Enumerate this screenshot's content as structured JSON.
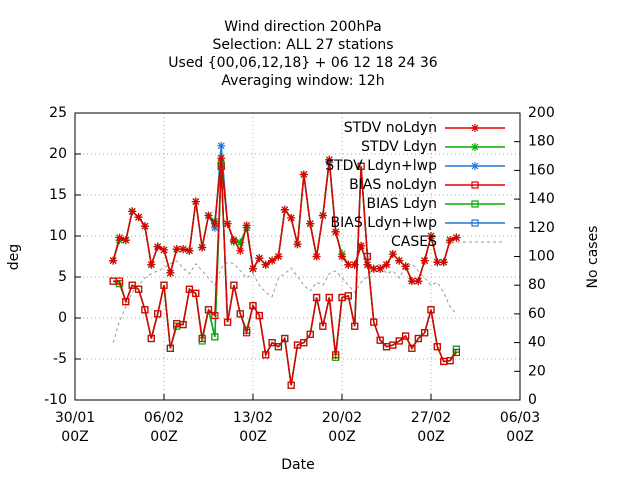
{
  "chart_data": {
    "type": "line",
    "title": [
      "Wind direction 200hPa",
      "Selection: ALL      27 stations",
      "Used {00,06,12,18} + 06 12 18 24 36",
      "Averaging window: 12h"
    ],
    "xlabel": "Date",
    "ylabel": "deg",
    "y2label": "No cases",
    "xlim": [
      0,
      35
    ],
    "xticks": [
      {
        "value": 0,
        "label": "30/01 00Z"
      },
      {
        "value": 7,
        "label": "06/02 00Z"
      },
      {
        "value": 14,
        "label": "13/02 00Z"
      },
      {
        "value": 21,
        "label": "20/02 00Z"
      },
      {
        "value": 28,
        "label": "27/02 00Z"
      },
      {
        "value": 35,
        "label": "06/03 00Z"
      }
    ],
    "ylim": [
      -10,
      25
    ],
    "yticks": [
      -10,
      -5,
      0,
      5,
      10,
      15,
      20,
      25
    ],
    "y2lim": [
      0,
      200
    ],
    "y2ticks": [
      0,
      20,
      40,
      60,
      80,
      100,
      120,
      140,
      160,
      180,
      200
    ],
    "grid": true,
    "legend": "top-right",
    "x": [
      3,
      3.5,
      4,
      4.5,
      5,
      5.5,
      6,
      6.5,
      7,
      7.5,
      8,
      8.5,
      9,
      9.5,
      10,
      10.5,
      11,
      11.5,
      12,
      12.5,
      13,
      13.5,
      14,
      14.5,
      15,
      15.5,
      16,
      16.5,
      17,
      17.5,
      18,
      18.5,
      19,
      19.5,
      20,
      20.5,
      21,
      21.5,
      22,
      22.5,
      23,
      23.5,
      24,
      24.5,
      25,
      25.5,
      26,
      26.5,
      27,
      27.5,
      28,
      28.5,
      29,
      29.5,
      30
    ],
    "series": [
      {
        "name": "STDV noLdyn",
        "color": "#e00000",
        "marker": "star",
        "values": [
          7,
          9.8,
          9.5,
          13,
          12.3,
          11.2,
          6.5,
          8.7,
          8.3,
          5.5,
          8.4,
          8.4,
          8.2,
          14.2,
          8.6,
          12.5,
          11.5,
          19.5,
          11.5,
          9.5,
          8.2,
          11.3,
          6,
          7.3,
          6.5,
          7,
          7.5,
          13.2,
          12.2,
          9,
          17.5,
          11.5,
          7.5,
          12.5,
          19.3,
          10.5,
          7.5,
          6.5,
          6.5,
          8.8,
          6.5,
          6,
          6,
          6.5,
          7.8,
          7,
          6.3,
          4.5,
          4.5,
          7,
          10,
          6.8,
          6.8,
          9.5,
          9.8
        ]
      },
      {
        "name": "STDV Ldyn",
        "color": "#00b000",
        "marker": "star",
        "values": [
          7,
          9.5,
          9.5,
          13,
          12.3,
          11.2,
          6.5,
          8.7,
          8.3,
          5.5,
          8.4,
          8.4,
          8.2,
          14.2,
          8.6,
          12.5,
          11.8,
          19,
          11.5,
          9.3,
          9.2,
          11,
          6,
          7.3,
          6.5,
          7,
          7.5,
          13.2,
          12.2,
          9,
          17.5,
          11.5,
          7.5,
          12.5,
          19.3,
          10.5,
          7.8,
          6.5,
          6.5,
          8.8,
          6.5,
          6,
          6,
          6.5,
          7.8,
          7,
          6.3,
          4.5,
          4.5,
          7,
          10,
          6.8,
          6.8,
          9.5,
          9.8
        ]
      },
      {
        "name": "STDV Ldyn+lwp",
        "color": "#1e78d8",
        "marker": "star",
        "values": [
          7,
          9.5,
          9.5,
          13,
          12.3,
          11.2,
          6.5,
          8.7,
          8.3,
          5.5,
          8.4,
          8.4,
          8.2,
          14.2,
          8.6,
          12.5,
          11,
          21,
          11.5,
          9.3,
          9.2,
          11,
          6,
          7.3,
          6.5,
          7,
          7.5,
          13.2,
          12.2,
          9,
          17.5,
          11.5,
          7.5,
          12.5,
          19,
          10.5,
          7.5,
          6.5,
          6.5,
          8.8,
          6.5,
          6,
          6,
          6.5,
          7.8,
          7,
          6.3,
          4.5,
          4.5,
          7,
          10,
          6.8,
          6.8,
          9.5,
          9.8
        ]
      },
      {
        "name": "BIAS noLdyn",
        "color": "#e00000",
        "marker": "square",
        "values": [
          4.5,
          4.5,
          2,
          4,
          3.5,
          1,
          -2.5,
          0.5,
          4,
          -3.7,
          -0.7,
          -0.8,
          3.5,
          3,
          -2.5,
          1,
          0.3,
          18.5,
          -0.5,
          4,
          0.5,
          -1.8,
          1.5,
          0.3,
          -4.5,
          -3,
          -3.5,
          -2.5,
          -8.2,
          -3.3,
          -3,
          -2,
          2.5,
          -1,
          2.5,
          -4.5,
          2.5,
          2.7,
          -1,
          18.5,
          7.5,
          -0.5,
          -2.7,
          -3.5,
          -3.3,
          -2.8,
          -2.2,
          -3.7,
          -2.5,
          -1.8,
          1,
          -3.5,
          -5.3,
          -5.2,
          -4.2
        ]
      },
      {
        "name": "BIAS Ldyn",
        "color": "#00b000",
        "marker": "square",
        "values": [
          4.5,
          4.2,
          2,
          4,
          3.5,
          1,
          -2.5,
          0.5,
          4,
          -3.7,
          -1,
          -0.8,
          3.5,
          3,
          -2.8,
          1,
          -2.3,
          18.5,
          -0.5,
          4,
          0.5,
          -1.5,
          1.5,
          0.3,
          -4.5,
          -3,
          -3.5,
          -2.5,
          -8.2,
          -3.3,
          -3,
          -2,
          2.5,
          -1,
          2.5,
          -4.8,
          2.5,
          2.7,
          -1,
          18.5,
          7.5,
          -0.5,
          -2.7,
          -3.5,
          -3.3,
          -2.8,
          -2.2,
          -3.7,
          -2.5,
          -1.8,
          1,
          -3.5,
          -5.3,
          -5.2,
          -3.8
        ]
      },
      {
        "name": "BIAS Ldyn+lwp",
        "color": "#1e78d8",
        "marker": "square",
        "values": [
          4.5,
          4.2,
          2,
          4,
          3.5,
          1,
          -2.5,
          0.5,
          4,
          -3.7,
          -0.7,
          -0.8,
          3.5,
          3,
          -2.5,
          1,
          -2.3,
          18.5,
          -0.5,
          4,
          0.5,
          -1.5,
          1.5,
          0.3,
          -4.5,
          -3,
          -3.5,
          -2.5,
          -8.2,
          -3.3,
          -3,
          -2,
          2.5,
          -1,
          2.5,
          -4.5,
          2.5,
          2.7,
          -1,
          18.5,
          7.5,
          -0.5,
          -2.7,
          -3.5,
          -3.3,
          -2.8,
          -2.2,
          -3.7,
          -2.5,
          -1.8,
          1,
          -3.5,
          -5.3,
          -5.2,
          -3.8
        ]
      },
      {
        "name": "CASES",
        "color": "#999999",
        "dash": true,
        "axis": "y2",
        "values": [
          40,
          55,
          65,
          75,
          80,
          85,
          88,
          90,
          92,
          95,
          97,
          92,
          88,
          95,
          90,
          85,
          80,
          92,
          96,
          95,
          90,
          85,
          88,
          80,
          75,
          72,
          85,
          88,
          92,
          86,
          80,
          76,
          82,
          80,
          88,
          90,
          85,
          80,
          75,
          82,
          86,
          92,
          95,
          88,
          90,
          85,
          93,
          95,
          90,
          85,
          80,
          82,
          75,
          65,
          60
        ]
      }
    ]
  }
}
